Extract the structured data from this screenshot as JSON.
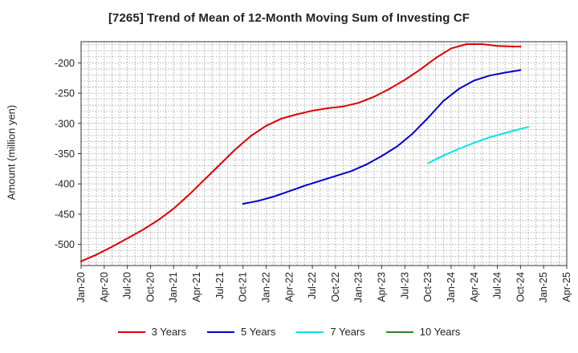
{
  "title": "[7265]  Trend of Mean of 12-Month Moving Sum of Investing CF",
  "chart_data": {
    "type": "line",
    "title": "[7265]  Trend of Mean of 12-Month Moving Sum of Investing CF",
    "xlabel": "",
    "ylabel": "Amount (million yen)",
    "ylim": [
      -535,
      -165
    ],
    "yticks": [
      -200,
      -250,
      -300,
      -350,
      -400,
      -450,
      -500
    ],
    "x_range": [
      "2020-01",
      "2025-04"
    ],
    "xticks": [
      "Jan-20",
      "Apr-20",
      "Jul-20",
      "Oct-20",
      "Jan-21",
      "Apr-21",
      "Jul-21",
      "Oct-21",
      "Jan-22",
      "Apr-22",
      "Jul-22",
      "Oct-22",
      "Jan-23",
      "Apr-23",
      "Jul-23",
      "Oct-23",
      "Jan-24",
      "Apr-24",
      "Jul-24",
      "Oct-24",
      "Jan-25",
      "Apr-25"
    ],
    "grid": true,
    "legend_position": "bottom",
    "series": [
      {
        "name": "3 Years",
        "color": "#dd0000",
        "points": [
          [
            "2020-01",
            -528
          ],
          [
            "2020-03",
            -517
          ],
          [
            "2020-05",
            -504
          ],
          [
            "2020-07",
            -490
          ],
          [
            "2020-09",
            -476
          ],
          [
            "2020-11",
            -460
          ],
          [
            "2021-01",
            -441
          ],
          [
            "2021-03",
            -418
          ],
          [
            "2021-05",
            -393
          ],
          [
            "2021-07",
            -368
          ],
          [
            "2021-09",
            -343
          ],
          [
            "2021-11",
            -321
          ],
          [
            "2022-01",
            -304
          ],
          [
            "2022-03",
            -292
          ],
          [
            "2022-05",
            -285
          ],
          [
            "2022-07",
            -279
          ],
          [
            "2022-09",
            -275
          ],
          [
            "2022-11",
            -272
          ],
          [
            "2023-01",
            -266
          ],
          [
            "2023-03",
            -256
          ],
          [
            "2023-05",
            -243
          ],
          [
            "2023-07",
            -228
          ],
          [
            "2023-09",
            -211
          ],
          [
            "2023-11",
            -192
          ],
          [
            "2024-01",
            -176
          ],
          [
            "2024-03",
            -169
          ],
          [
            "2024-05",
            -169
          ],
          [
            "2024-07",
            -172
          ],
          [
            "2024-09",
            -173
          ],
          [
            "2024-10",
            -173
          ]
        ]
      },
      {
        "name": "5 Years",
        "color": "#0000cc",
        "points": [
          [
            "2021-10",
            -433
          ],
          [
            "2021-12",
            -428
          ],
          [
            "2022-02",
            -421
          ],
          [
            "2022-04",
            -412
          ],
          [
            "2022-06",
            -403
          ],
          [
            "2022-08",
            -395
          ],
          [
            "2022-10",
            -387
          ],
          [
            "2022-12",
            -379
          ],
          [
            "2023-02",
            -368
          ],
          [
            "2023-04",
            -354
          ],
          [
            "2023-06",
            -338
          ],
          [
            "2023-08",
            -317
          ],
          [
            "2023-10",
            -291
          ],
          [
            "2023-12",
            -263
          ],
          [
            "2024-02",
            -243
          ],
          [
            "2024-04",
            -229
          ],
          [
            "2024-06",
            -221
          ],
          [
            "2024-08",
            -216
          ],
          [
            "2024-10",
            -212
          ]
        ]
      },
      {
        "name": "7 Years",
        "color": "#00e5e5",
        "points": [
          [
            "2023-10",
            -366
          ],
          [
            "2023-12",
            -353
          ],
          [
            "2024-02",
            -342
          ],
          [
            "2024-04",
            -332
          ],
          [
            "2024-06",
            -323
          ],
          [
            "2024-08",
            -316
          ],
          [
            "2024-10",
            -309
          ],
          [
            "2024-11",
            -306
          ]
        ]
      },
      {
        "name": "10 Years",
        "color": "#228822",
        "points": []
      }
    ]
  }
}
